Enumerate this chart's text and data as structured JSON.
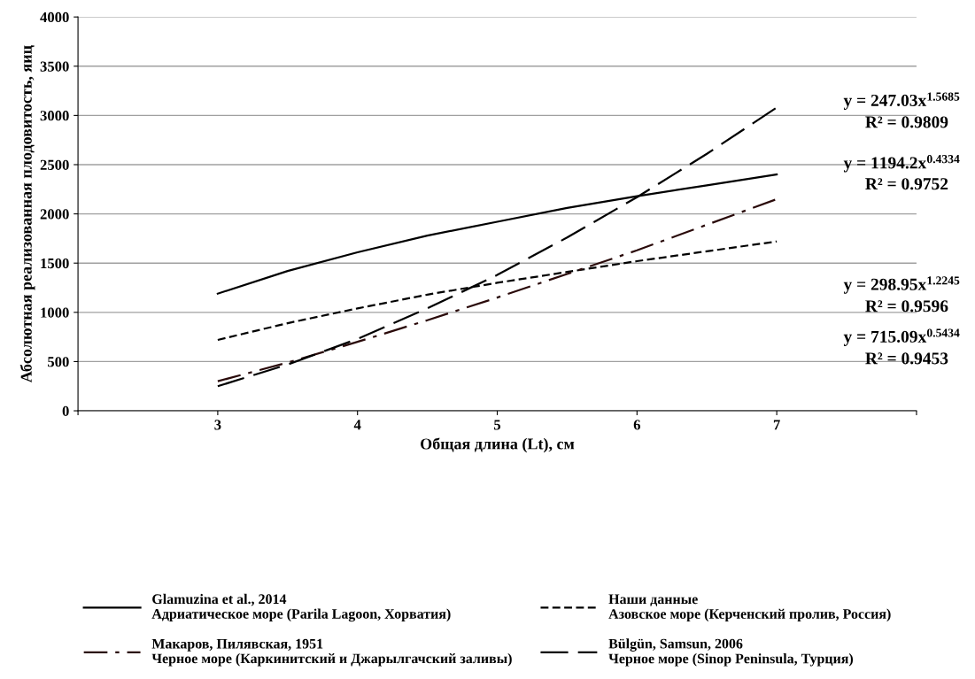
{
  "chart_data": {
    "type": "line",
    "xlabel": "Общая длина (Lt), см",
    "ylabel": "Абсолютная реализованная плодовитость, яиц",
    "x": [
      3,
      3.5,
      4,
      4.5,
      5,
      5.5,
      6,
      6.5,
      7
    ],
    "series": [
      {
        "name": "Glamuzina et al., 2014\nАдриатическое море (Parila Lagoon, Хорватия)",
        "color": "#000000",
        "line_style": "solid",
        "values": [
          1190,
          1420,
          1610,
          1780,
          1920,
          2060,
          2180,
          2290,
          2400
        ]
      },
      {
        "name": "Наши данные\nАзовское море (Керченский пролив, Россия)",
        "color": "#000000",
        "line_style": "dashed",
        "values": [
          720,
          890,
          1040,
          1180,
          1300,
          1410,
          1520,
          1620,
          1720
        ]
      },
      {
        "name": "Макаров, Пилявская, 1951\nЧерное море (Каркинитский и Джарылгачский заливы)",
        "color": "#2a0a0a",
        "line_style": "dashdot",
        "values": [
          300,
          490,
          700,
          920,
          1150,
          1390,
          1630,
          1890,
          2150
        ]
      },
      {
        "name": "Bülgün, Samsun, 2006\nЧерное море (Sinop Peninsula, Турция)",
        "color": "#000000",
        "line_style": "longdash",
        "values": [
          250,
          470,
          730,
          1040,
          1380,
          1760,
          2170,
          2610,
          3080
        ]
      }
    ],
    "annotations": [
      "y = 247.03x$^{1.5685}$",
      "R² = 0.9809",
      "y = 1194.2x$^{0.4334}$",
      "R² = 0.9752",
      "y = 298.95x$^{1.2245}$",
      "R² = 0.9596",
      "y = 715.09x$^{0.5434}$",
      "R² = 0.9453"
    ],
    "xlim": [
      2,
      8
    ],
    "xticks": [
      {
        "value": 2,
        "label": null
      },
      3,
      4,
      5,
      6,
      7,
      {
        "value": 8,
        "label": null
      }
    ],
    "ylim": [
      0,
      4000
    ],
    "yticks": [
      0,
      500,
      1000,
      1500,
      2000,
      2500,
      3000,
      3500,
      4000
    ],
    "grid": "y",
    "legend": "bottom",
    "marker": "none"
  }
}
